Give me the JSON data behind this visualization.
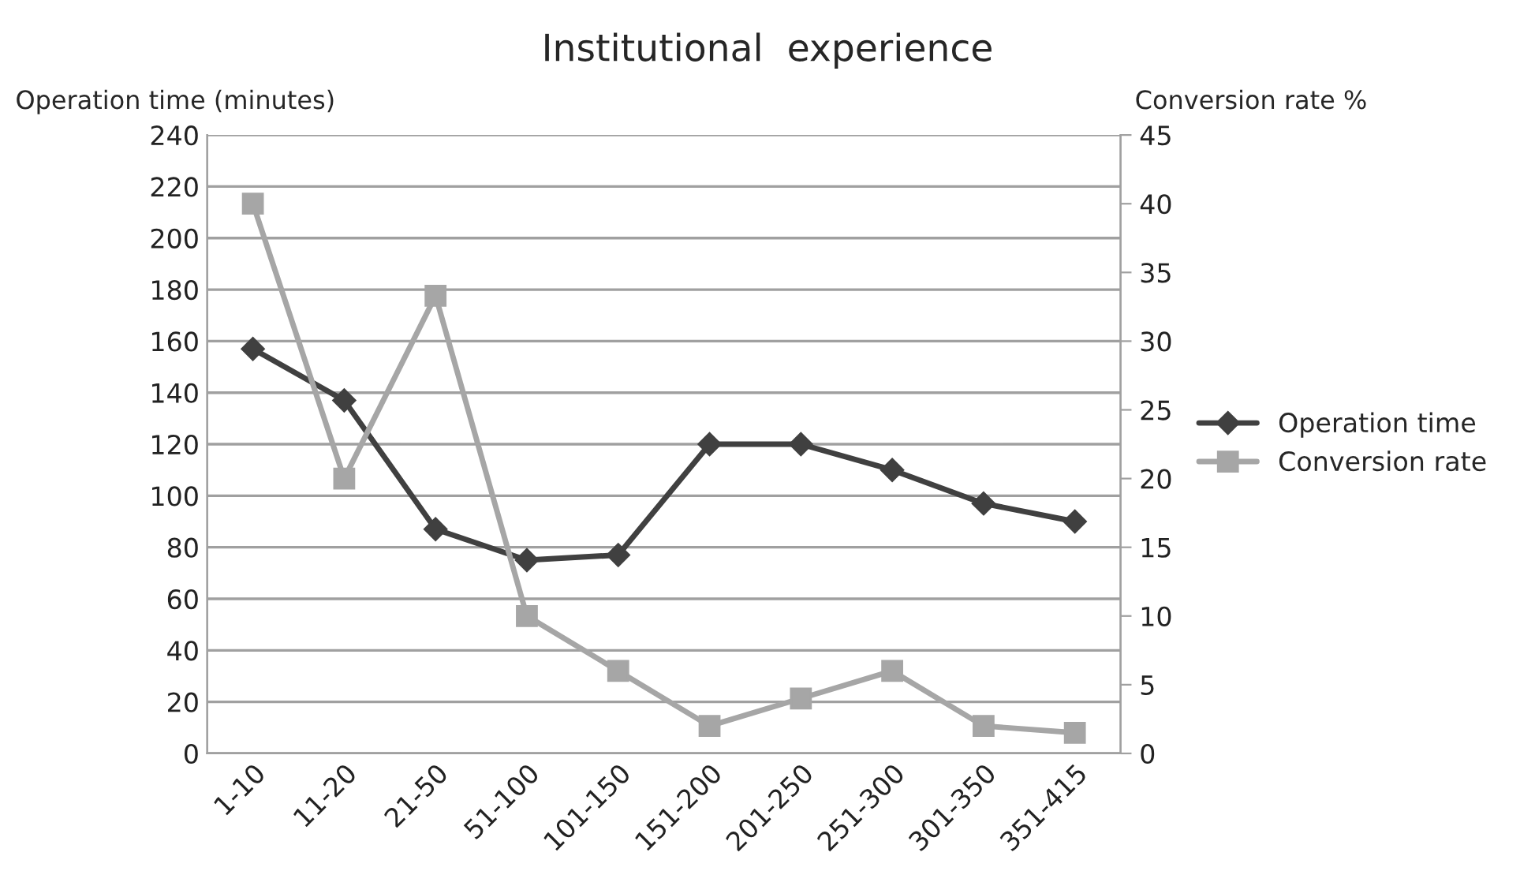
{
  "chart_data": {
    "type": "line",
    "title": "Institutional  experience",
    "ylabel": "Operation time (minutes)",
    "y2label": "Conversion rate %",
    "categories": [
      "1-10",
      "11-20",
      "21-50",
      "51-100",
      "101-150",
      "151-200",
      "201-250",
      "251-300",
      "301-350",
      "351-415"
    ],
    "series": [
      {
        "name": "Operation time",
        "color": "#404040",
        "marker": "diamond",
        "values": [
          157,
          137,
          87,
          75,
          77,
          120,
          120,
          110,
          97,
          90
        ]
      },
      {
        "name": "Conversion rate",
        "color": "#a6a6a6",
        "marker": "square",
        "axis": "y2",
        "values": [
          40,
          20,
          33.3,
          10,
          6,
          2,
          4,
          6,
          2,
          1.5
        ]
      }
    ],
    "ylim": [
      0,
      240
    ],
    "yticks": [
      0,
      20,
      40,
      60,
      80,
      100,
      120,
      140,
      160,
      180,
      200,
      220,
      240
    ],
    "y2lim": [
      0,
      45
    ],
    "y2ticks": [
      0,
      5,
      10,
      15,
      20,
      25,
      30,
      35,
      40,
      45
    ],
    "grid": "y",
    "legend": "right"
  }
}
